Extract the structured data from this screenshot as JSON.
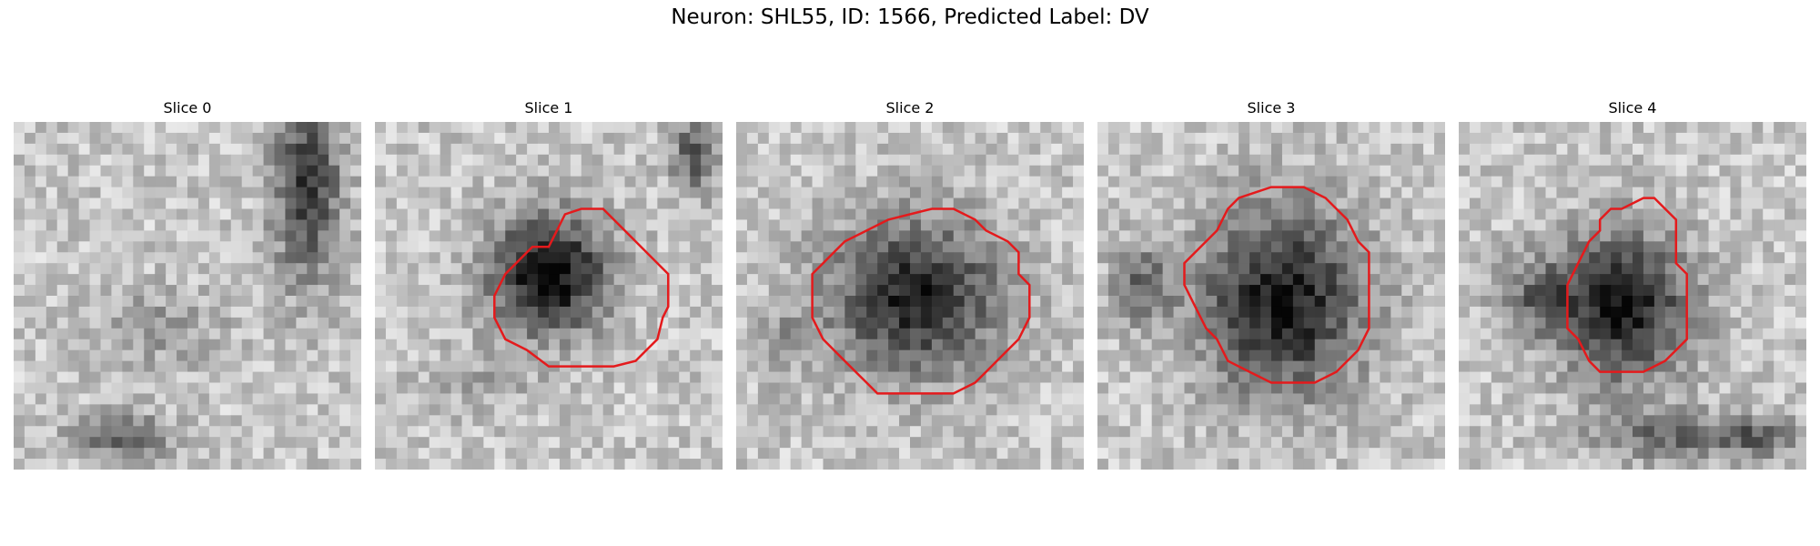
{
  "figure": {
    "title": "Neuron: SHL55, ID: 1566, Predicted Label: DV"
  },
  "colors": {
    "contour": "#e41a1c",
    "background": "#ffffff"
  },
  "panels": [
    {
      "title": "Slice 0",
      "has_contour": false
    },
    {
      "title": "Slice 1",
      "has_contour": true
    },
    {
      "title": "Slice 2",
      "has_contour": true
    },
    {
      "title": "Slice 3",
      "has_contour": true
    },
    {
      "title": "Slice 4",
      "has_contour": true
    }
  ]
}
